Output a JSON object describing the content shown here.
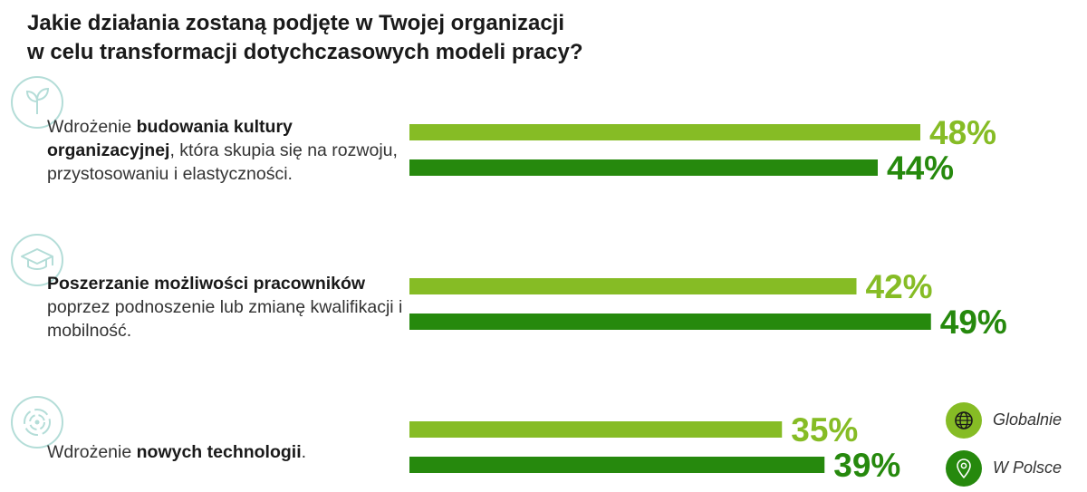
{
  "chart_data": {
    "type": "bar",
    "orientation": "horizontal",
    "title": "Jakie działania zostaną podjęte w Twojej organizacji w celu transformacji dotychczasowych modeli pracy?",
    "title_lines": [
      "Jakie działania zostaną podjęte w Twojej organizacji",
      "w celu transformacji dotychczasowych modeli pracy?"
    ],
    "categories": [
      {
        "icon": "sprout-icon",
        "label_parts": [
          {
            "text": "Wdrożenie ",
            "bold": false
          },
          {
            "text": "budowania kultury organizacyjnej",
            "bold": true
          },
          {
            "text": ", która skupia się na rozwoju, przystosowaniu i elastyczności.",
            "bold": false
          }
        ]
      },
      {
        "icon": "graduation-cap-icon",
        "label_parts": [
          {
            "text": "Poszerzanie możliwości pracowników",
            "bold": true
          },
          {
            "text": " poprzez podnoszenie lub zmianę kwalifikacji i mobilność.",
            "bold": false
          }
        ]
      },
      {
        "icon": "technology-target-icon",
        "label_parts": [
          {
            "text": "Wdrożenie ",
            "bold": false
          },
          {
            "text": "nowych technologii",
            "bold": true
          },
          {
            "text": ".",
            "bold": false
          }
        ]
      }
    ],
    "series": [
      {
        "name": "Globalnie",
        "color": "#86bc25",
        "icon": "globe-icon",
        "values": [
          48,
          42,
          35
        ],
        "labels": [
          "48%",
          "42%",
          "35%"
        ]
      },
      {
        "name": "W Polsce",
        "color": "#26890d",
        "icon": "location-pin-icon",
        "values": [
          44,
          49,
          39
        ],
        "labels": [
          "44%",
          "49%",
          "39%"
        ]
      }
    ],
    "unit": "%",
    "xlim": [
      0,
      100
    ],
    "grid": false,
    "legend_position": "bottom-right"
  }
}
